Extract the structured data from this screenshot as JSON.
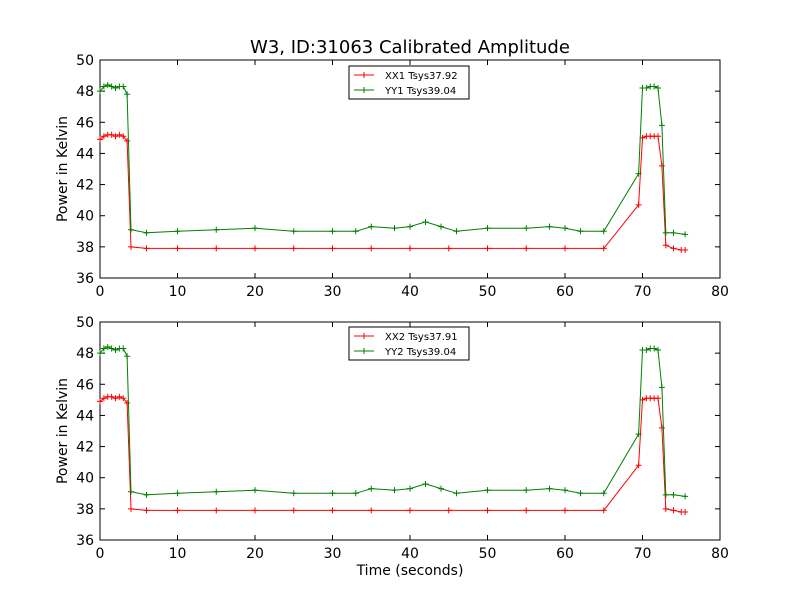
{
  "figure": {
    "title": "W3, ID:31063 Calibrated Amplitude"
  },
  "chart_data": [
    {
      "type": "line",
      "title": "W3, ID:31063 Calibrated Amplitude",
      "xlabel": "",
      "ylabel": "Power in Kelvin",
      "xlim": [
        0,
        80
      ],
      "ylim": [
        36,
        50
      ],
      "xticks": [
        "0",
        "10",
        "20",
        "30",
        "40",
        "50",
        "60",
        "70",
        "80"
      ],
      "yticks": [
        "36",
        "38",
        "40",
        "42",
        "44",
        "46",
        "48",
        "50"
      ],
      "grid": false,
      "legend": "top-center",
      "series": [
        {
          "name": "XX1 Tsys37.92",
          "color": "#ff0000",
          "marker": "plus",
          "x": [
            0,
            0.5,
            1,
            1.5,
            2,
            2.5,
            3,
            3.5,
            4,
            6,
            10,
            15,
            20,
            25,
            30,
            35,
            40,
            45,
            50,
            55,
            60,
            65,
            69.5,
            70,
            70.5,
            71,
            71.5,
            72,
            72.5,
            73,
            74,
            75,
            75.5
          ],
          "y": [
            44.9,
            45.1,
            45.2,
            45.2,
            45.1,
            45.2,
            45.1,
            44.8,
            38.0,
            37.9,
            37.9,
            37.9,
            37.9,
            37.9,
            37.9,
            37.9,
            37.9,
            37.9,
            37.9,
            37.9,
            37.9,
            37.9,
            40.7,
            45.0,
            45.1,
            45.1,
            45.1,
            45.1,
            43.2,
            38.1,
            37.9,
            37.8,
            37.8
          ]
        },
        {
          "name": "YY1 Tsys39.04",
          "color": "#008000",
          "marker": "plus",
          "x": [
            0,
            0.5,
            1,
            1.5,
            2,
            2.5,
            3,
            3.5,
            4,
            6,
            10,
            15,
            20,
            25,
            30,
            33,
            35,
            38,
            40,
            42,
            44,
            46,
            50,
            55,
            58,
            60,
            62,
            65,
            69.5,
            70,
            70.5,
            71,
            71.5,
            72,
            72.5,
            73,
            74,
            75.5
          ],
          "y": [
            48.0,
            48.3,
            48.4,
            48.3,
            48.2,
            48.3,
            48.3,
            47.8,
            39.1,
            38.9,
            39.0,
            39.1,
            39.2,
            39.0,
            39.0,
            39.0,
            39.3,
            39.2,
            39.3,
            39.6,
            39.3,
            39.0,
            39.2,
            39.2,
            39.3,
            39.2,
            39.0,
            39.0,
            42.7,
            48.2,
            48.2,
            48.3,
            48.3,
            48.2,
            45.8,
            38.9,
            38.9,
            38.8
          ]
        }
      ]
    },
    {
      "type": "line",
      "title": "",
      "xlabel": "Time (seconds)",
      "ylabel": "Power in Kelvin",
      "xlim": [
        0,
        80
      ],
      "ylim": [
        36,
        50
      ],
      "xticks": [
        "0",
        "10",
        "20",
        "30",
        "40",
        "50",
        "60",
        "70",
        "80"
      ],
      "yticks": [
        "36",
        "38",
        "40",
        "42",
        "44",
        "46",
        "48",
        "50"
      ],
      "grid": false,
      "legend": "top-center",
      "series": [
        {
          "name": "XX2 Tsys37.91",
          "color": "#ff0000",
          "marker": "plus",
          "x": [
            0,
            0.5,
            1,
            1.5,
            2,
            2.5,
            3,
            3.5,
            4,
            6,
            10,
            15,
            20,
            25,
            30,
            35,
            40,
            45,
            50,
            55,
            60,
            65,
            69.5,
            70,
            70.5,
            71,
            71.5,
            72,
            72.5,
            73,
            74,
            75,
            75.5
          ],
          "y": [
            44.9,
            45.1,
            45.2,
            45.2,
            45.1,
            45.2,
            45.1,
            44.8,
            38.0,
            37.9,
            37.9,
            37.9,
            37.9,
            37.9,
            37.9,
            37.9,
            37.9,
            37.9,
            37.9,
            37.9,
            37.9,
            37.9,
            40.8,
            45.0,
            45.1,
            45.1,
            45.1,
            45.1,
            43.2,
            38.0,
            37.9,
            37.8,
            37.8
          ]
        },
        {
          "name": "YY2 Tsys39.04",
          "color": "#008000",
          "marker": "plus",
          "x": [
            0,
            0.5,
            1,
            1.5,
            2,
            2.5,
            3,
            3.5,
            4,
            6,
            10,
            15,
            20,
            25,
            30,
            33,
            35,
            38,
            40,
            42,
            44,
            46,
            50,
            55,
            58,
            60,
            62,
            65,
            69.5,
            70,
            70.5,
            71,
            71.5,
            72,
            72.5,
            73,
            74,
            75.5
          ],
          "y": [
            48.0,
            48.3,
            48.4,
            48.3,
            48.2,
            48.3,
            48.3,
            47.8,
            39.1,
            38.9,
            39.0,
            39.1,
            39.2,
            39.0,
            39.0,
            39.0,
            39.3,
            39.2,
            39.3,
            39.6,
            39.3,
            39.0,
            39.2,
            39.2,
            39.3,
            39.2,
            39.0,
            39.0,
            42.8,
            48.2,
            48.2,
            48.3,
            48.3,
            48.2,
            45.8,
            38.9,
            38.9,
            38.8
          ]
        }
      ]
    }
  ]
}
